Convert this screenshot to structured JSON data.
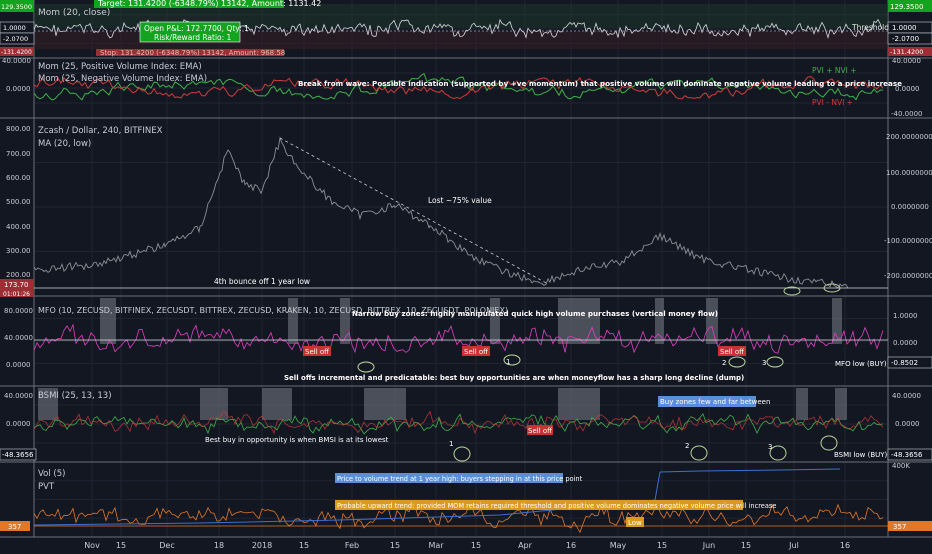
{
  "colors": {
    "background": "#131722",
    "grid": "#1f2433",
    "separator": "#6b6f7a",
    "text": "#c9ccd4",
    "annotation": "#e8e8e8",
    "green_line": "#3fb04a",
    "red_line": "#d23b3b",
    "price_line": "#8d8f96",
    "magenta_line": "#e040c0",
    "blue_line": "#3d6fd0",
    "orange_line": "#e0782a",
    "green_box": "#14a31f",
    "red_box": "#9b2f35",
    "grey_zone": "#7a7e88",
    "oval": "#b9d39a",
    "label_red": "#c83232",
    "label_blue": "#5a8fd8",
    "label_orange": "#d99a1e"
  },
  "trade_box": {
    "target": "Target: 131.4200 (-6348.79%) 13142, Amount: 1131.42",
    "open": "Open P&L: 172.7700, Qty: 1",
    "rr": "Risk/Reward Ratio: 1",
    "stop": "Stop: 131.4200 (-6348.79%) 13142, Amount: 968.58"
  },
  "panes": [
    {
      "id": "mom",
      "legend": [
        "Mom (20, close)"
      ],
      "right_ticks": [],
      "right_badges": [
        {
          "text": "129.3500",
          "color": "#14a31f"
        },
        {
          "text": "1.0000",
          "color": "#131722"
        },
        {
          "text": "-2.0700",
          "color": "#131722"
        },
        {
          "text": "-131.4200",
          "color": "#9b2f35"
        }
      ],
      "left_badges": [
        {
          "text": "129.3500",
          "color": "#14a31f"
        },
        {
          "text": "1.0000",
          "color": "#131722"
        },
        {
          "text": "-2.0700",
          "color": "#131722"
        },
        {
          "text": "-131.4200",
          "color": "#9b2f35"
        }
      ],
      "annotations": [
        "Threshold"
      ]
    },
    {
      "id": "pvi",
      "legend": [
        "Mom (25, Positive Volume Index: EMA)",
        "Mom (25, Negative Volume Index: EMA)"
      ],
      "right_ticks": [
        "40.0000",
        "0.0000",
        "-40.0000"
      ],
      "left_ticks": [
        "40.0000",
        "0.0000"
      ],
      "annotations": [
        "Break from wave: Possible indication (supported by +ve momentum) that positive volume will dominate negative volume leading to a price increase",
        "PVI + NVI +",
        "PVI - NVI +"
      ]
    },
    {
      "id": "price",
      "legend": [
        "Zcash / Dollar, 240, BITFINEX",
        "MA (20, low)"
      ],
      "left_ticks": [
        "800.00",
        "700.00",
        "600.00",
        "500.00",
        "400.00",
        "300.00",
        "200.00"
      ],
      "right_ticks": [
        "200.0000000",
        "100.0000000",
        "0.0000000",
        "-100.0000000",
        "-200.0000000"
      ],
      "left_badges": [
        {
          "text": "173.70",
          "color": "#9b2f35"
        },
        {
          "text": "01:01:26",
          "color": "#9b2f35"
        }
      ],
      "annotations": [
        "Lost ~75% value",
        "4th bounce off 1 year low"
      ]
    },
    {
      "id": "mfo",
      "legend": [
        "MFO (10, ZECUSD, BITFINEX, ZECUSDT, BITTREX, ZECUSD, KRAKEN, 10, ZECUSD, BITTREX, 10, ZECUSDT, POLONIEX)"
      ],
      "left_ticks": [
        "80.0000",
        "40.0000",
        "0.0000"
      ],
      "right_ticks": [
        "1.0000",
        "0.0000"
      ],
      "right_badges": [
        {
          "text": "-0.8502",
          "color": "#131722"
        }
      ],
      "annotations": [
        "Narrow buy zones: highly manipulated quick high volume purchases (vertical money flow)",
        "Sell off",
        "Sell off",
        "Sell off",
        "Sell offs incremental and predicatable: best buy opportunities are when moneyflow has a sharp long decline (dump)",
        "MFO low (BUY)",
        "1",
        "2",
        "3"
      ]
    },
    {
      "id": "bsmi",
      "legend": [
        "BSMI (25, 13, 13)"
      ],
      "left_ticks": [
        "40.0000",
        "0.0000"
      ],
      "right_ticks": [
        "40.0000",
        "0.0000"
      ],
      "left_badges": [
        {
          "text": "-48.3656",
          "color": "#131722"
        }
      ],
      "right_badges": [
        {
          "text": "-48.3656",
          "color": "#131722"
        }
      ],
      "annotations": [
        "Buy zones few and far between",
        "Sell off",
        "Best buy in opportunity is when BMSI is at its lowest",
        "BSMI low (BUY)",
        "1",
        "2",
        "3"
      ]
    },
    {
      "id": "vol",
      "legend": [
        "Vol (5)",
        "PVT"
      ],
      "right_ticks": [
        "400K"
      ],
      "left_badges": [
        {
          "text": "357",
          "color": "#e0782a"
        }
      ],
      "right_badges": [
        {
          "text": "357",
          "color": "#e0782a"
        }
      ],
      "annotations": [
        "Price to volume trend at 1 year high: buyers stepping in at this price point",
        "Probable upward trend: provided MOM retains required threshold and positive volume dominates negative volume price will increase",
        "Low"
      ]
    }
  ],
  "time_axis": [
    "Nov",
    "15",
    "Dec",
    "18",
    "2018",
    "15",
    "Feb",
    "15",
    "Mar",
    "15",
    "Apr",
    "16",
    "May",
    "15",
    "Jun",
    "15",
    "Jul",
    "16"
  ],
  "chart_data": {
    "type": "line",
    "title": "Zcash / Dollar, 240, BITFINEX",
    "xlabel": "",
    "ylabel": "",
    "x": [
      "Nov",
      "Dec",
      "2018",
      "Feb",
      "Mar",
      "Apr",
      "May",
      "Jun",
      "Jul"
    ],
    "series": [
      {
        "name": "Zcash / Dollar",
        "values": [
          270,
          300,
          720,
          420,
          300,
          210,
          300,
          220,
          180
        ]
      }
    ],
    "ylim": [
      150,
      800
    ],
    "grid": true,
    "annotations": [
      "Lost ~75% value",
      "4th bounce off 1 year low"
    ]
  }
}
